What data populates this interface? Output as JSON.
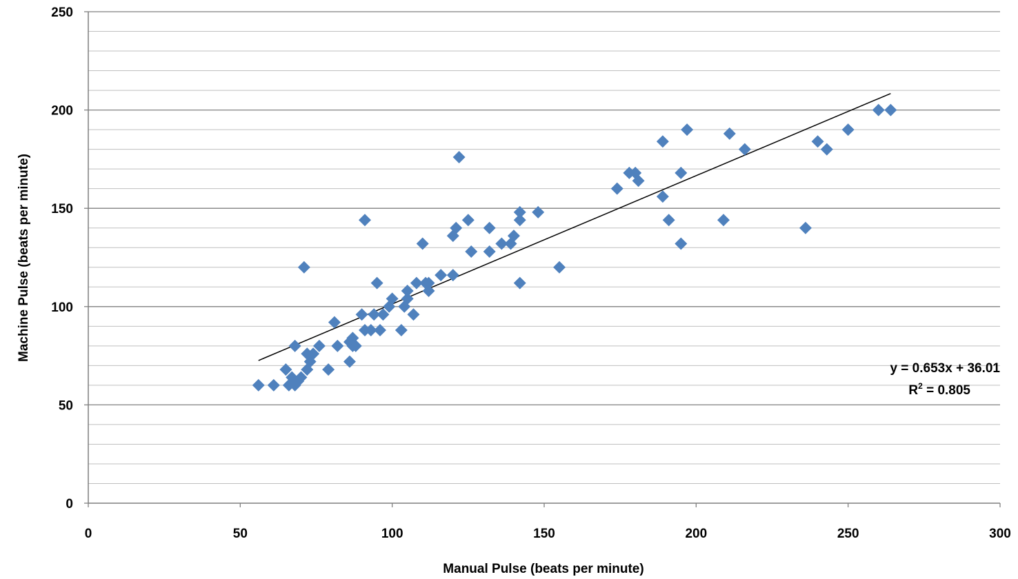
{
  "chart_data": {
    "type": "scatter",
    "title": "",
    "xlabel": "Manual Pulse (beats per minute)",
    "ylabel": "Machine Pulse (beats per minute)",
    "xlim": [
      0,
      300
    ],
    "ylim": [
      0,
      250
    ],
    "x_ticks": [
      0,
      50,
      100,
      150,
      200,
      250,
      300
    ],
    "y_ticks": [
      0,
      50,
      100,
      150,
      200,
      250
    ],
    "y_minor_step": 10,
    "grid": true,
    "marker": "diamond",
    "marker_color": "#4F81BD",
    "line_color": "#000000",
    "trendline": {
      "slope": 0.653,
      "intercept": 36.01,
      "x_range": [
        56,
        264
      ],
      "equation_text": "y = 0.653x + 36.01",
      "r2_prefix": "R",
      "r2_sup": "2",
      "r2_suffix": " = 0.805"
    },
    "series": [
      {
        "points": [
          [
            56,
            60
          ],
          [
            61,
            60
          ],
          [
            65,
            68
          ],
          [
            66,
            60
          ],
          [
            67,
            64
          ],
          [
            68,
            62
          ],
          [
            68,
            60
          ],
          [
            68,
            80
          ],
          [
            69,
            62
          ],
          [
            70,
            64
          ],
          [
            71,
            120
          ],
          [
            72,
            68
          ],
          [
            72,
            76
          ],
          [
            73,
            72
          ],
          [
            74,
            76
          ],
          [
            76,
            80
          ],
          [
            79,
            68
          ],
          [
            81,
            92
          ],
          [
            82,
            80
          ],
          [
            86,
            72
          ],
          [
            86,
            82
          ],
          [
            87,
            84
          ],
          [
            87,
            80
          ],
          [
            88,
            80
          ],
          [
            90,
            96
          ],
          [
            91,
            88
          ],
          [
            91,
            144
          ],
          [
            93,
            88
          ],
          [
            94,
            96
          ],
          [
            95,
            112
          ],
          [
            96,
            88
          ],
          [
            97,
            96
          ],
          [
            99,
            100
          ],
          [
            100,
            104
          ],
          [
            103,
            88
          ],
          [
            104,
            100
          ],
          [
            105,
            104
          ],
          [
            105,
            108
          ],
          [
            107,
            96
          ],
          [
            108,
            112
          ],
          [
            110,
            132
          ],
          [
            111,
            112
          ],
          [
            112,
            112
          ],
          [
            112,
            108
          ],
          [
            116,
            116
          ],
          [
            120,
            116
          ],
          [
            120,
            136
          ],
          [
            121,
            140
          ],
          [
            122,
            176
          ],
          [
            125,
            144
          ],
          [
            126,
            128
          ],
          [
            132,
            140
          ],
          [
            132,
            128
          ],
          [
            136,
            132
          ],
          [
            139,
            132
          ],
          [
            140,
            136
          ],
          [
            142,
            112
          ],
          [
            142,
            144
          ],
          [
            142,
            148
          ],
          [
            148,
            148
          ],
          [
            155,
            120
          ],
          [
            174,
            160
          ],
          [
            178,
            168
          ],
          [
            180,
            168
          ],
          [
            181,
            164
          ],
          [
            189,
            184
          ],
          [
            189,
            156
          ],
          [
            191,
            144
          ],
          [
            195,
            132
          ],
          [
            195,
            168
          ],
          [
            197,
            190
          ],
          [
            209,
            144
          ],
          [
            211,
            188
          ],
          [
            216,
            180
          ],
          [
            236,
            140
          ],
          [
            240,
            184
          ],
          [
            243,
            180
          ],
          [
            250,
            190
          ],
          [
            260,
            200
          ],
          [
            264,
            200
          ]
        ]
      }
    ]
  }
}
